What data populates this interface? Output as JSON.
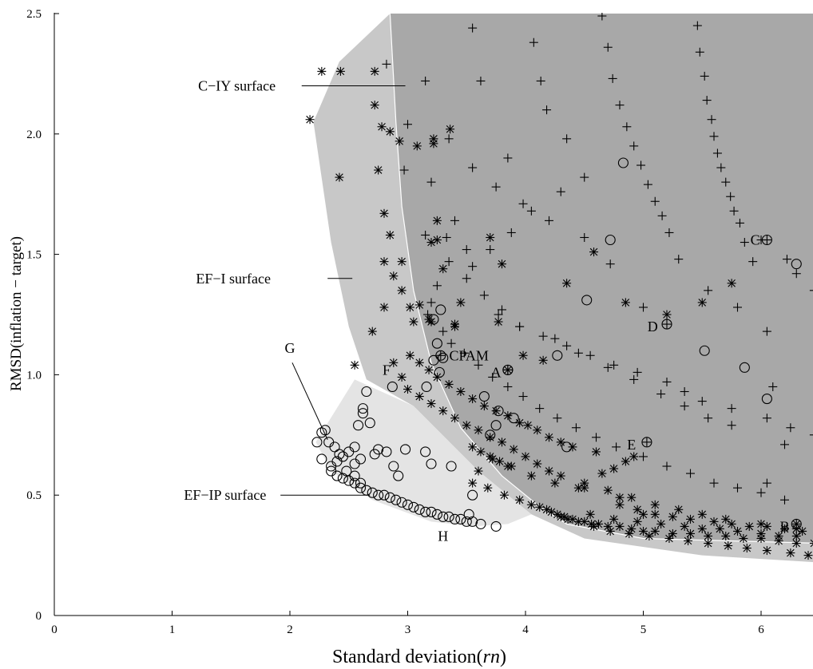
{
  "chart_data": {
    "type": "scatter",
    "title": "",
    "xlabel": "Standard deviation(rn)",
    "xlabel_parts": {
      "main": "Standard deviation(",
      "italic": "rn",
      "close": ")"
    },
    "ylabel": "RMSD(inflation − target)",
    "xlim": [
      0,
      6.45
    ],
    "ylim": [
      0,
      2.5
    ],
    "xticks": [
      "0",
      "1",
      "2",
      "3",
      "4",
      "5",
      "6"
    ],
    "yticks": [
      "0",
      "0.5",
      "1.0",
      "1.5",
      "2.0",
      "2.5"
    ],
    "grid": false,
    "legend": "none",
    "colors": {
      "cIY": "#a8a8a8",
      "efI": "#c8c8c8",
      "efIP": "#e4e4e4",
      "marker": "#000000",
      "boundary": "#ffffff"
    },
    "regions": [
      {
        "name": "C-IY surface",
        "fill": "cIY",
        "polygon": [
          [
            2.85,
            2.5
          ],
          [
            6.5,
            2.5
          ],
          [
            6.5,
            0.3
          ],
          [
            5.0,
            0.32
          ],
          [
            4.35,
            0.38
          ],
          [
            4.1,
            0.46
          ],
          [
            3.8,
            0.58
          ],
          [
            3.45,
            0.78
          ],
          [
            3.2,
            1.05
          ],
          [
            3.05,
            1.35
          ],
          [
            2.95,
            1.7
          ],
          [
            2.9,
            2.05
          ],
          [
            2.85,
            2.5
          ]
        ]
      },
      {
        "name": "EF-I surface",
        "fill": "efI",
        "polygon": [
          [
            2.85,
            2.5
          ],
          [
            2.9,
            2.05
          ],
          [
            2.95,
            1.7
          ],
          [
            3.05,
            1.35
          ],
          [
            3.2,
            1.05
          ],
          [
            3.45,
            0.78
          ],
          [
            3.8,
            0.58
          ],
          [
            4.1,
            0.46
          ],
          [
            4.35,
            0.38
          ],
          [
            5.0,
            0.32
          ],
          [
            6.5,
            0.3
          ],
          [
            6.5,
            0.22
          ],
          [
            5.5,
            0.25
          ],
          [
            4.5,
            0.32
          ],
          [
            4.05,
            0.42
          ],
          [
            3.6,
            0.6
          ],
          [
            3.05,
            0.87
          ],
          [
            2.65,
            0.98
          ],
          [
            2.5,
            1.2
          ],
          [
            2.35,
            1.55
          ],
          [
            2.2,
            2.05
          ],
          [
            2.42,
            2.3
          ],
          [
            2.85,
            2.5
          ]
        ]
      },
      {
        "name": "EF-IP surface",
        "fill": "efIP",
        "polygon": [
          [
            2.55,
            0.98
          ],
          [
            3.05,
            0.87
          ],
          [
            3.6,
            0.6
          ],
          [
            4.05,
            0.42
          ],
          [
            3.85,
            0.38
          ],
          [
            3.55,
            0.37
          ],
          [
            3.2,
            0.39
          ],
          [
            2.7,
            0.48
          ],
          [
            2.35,
            0.6
          ],
          [
            2.22,
            0.72
          ],
          [
            2.55,
            0.98
          ]
        ]
      }
    ],
    "annotations": [
      {
        "text": "C−IY surface",
        "x": 1.55,
        "y": 2.2,
        "line": [
          [
            2.1,
            2.2
          ],
          [
            2.98,
            2.2
          ]
        ]
      },
      {
        "text": "EF−I surface",
        "x": 1.52,
        "y": 1.4,
        "line": [
          [
            2.32,
            1.4
          ],
          [
            2.53,
            1.4
          ]
        ]
      },
      {
        "text": "EF−IP surface",
        "x": 1.45,
        "y": 0.5,
        "line": [
          [
            1.92,
            0.5
          ],
          [
            2.68,
            0.5
          ]
        ]
      },
      {
        "text": "G",
        "x": 2.0,
        "y": 1.11,
        "line": [
          [
            2.02,
            1.05
          ],
          [
            2.32,
            0.73
          ]
        ]
      },
      {
        "text": "H",
        "x": 3.3,
        "y": 0.33,
        "line": null
      },
      {
        "text": "F",
        "x": 2.82,
        "y": 1.02,
        "line": null
      },
      {
        "text": "CPAM",
        "x": 3.52,
        "y": 1.08,
        "line": null
      },
      {
        "text": "A",
        "x": 3.75,
        "y": 1.01,
        "line": null
      },
      {
        "text": "C",
        "x": 5.95,
        "y": 1.56,
        "line": null
      },
      {
        "text": "D",
        "x": 5.08,
        "y": 1.2,
        "line": null
      },
      {
        "text": "E",
        "x": 4.9,
        "y": 0.71,
        "line": null
      },
      {
        "text": "B",
        "x": 6.2,
        "y": 0.37,
        "line": null
      }
    ],
    "series": [
      {
        "name": "",
        "marker": "plus",
        "x": [
          2.82,
          3.15,
          3.0,
          3.55,
          3.62,
          2.97,
          3.2,
          3.85,
          4.07,
          4.13,
          4.18,
          4.35,
          3.5,
          3.4,
          3.33,
          3.15,
          4.65,
          4.7,
          4.74,
          4.8,
          4.86,
          4.92,
          4.98,
          5.04,
          5.1,
          5.16,
          5.22,
          5.46,
          5.48,
          5.52,
          5.54,
          5.58,
          5.6,
          5.63,
          5.66,
          5.7,
          5.74,
          5.77,
          5.82,
          5.86,
          5.93,
          6.0,
          6.22,
          6.3,
          6.45,
          6.05,
          5.8,
          5.55,
          5.3,
          5.0,
          4.72,
          4.5,
          4.2,
          3.98,
          3.75,
          3.55,
          3.35,
          3.2,
          3.17,
          3.3,
          3.37,
          3.48,
          3.6,
          3.72,
          3.85,
          3.98,
          4.12,
          4.27,
          4.43,
          4.6,
          4.77,
          5.0,
          5.2,
          5.4,
          5.6,
          5.8,
          6.0,
          6.2,
          3.77,
          3.95,
          4.15,
          4.35,
          4.55,
          4.75,
          4.95,
          5.2,
          5.35,
          5.5,
          5.75,
          6.05,
          6.25,
          6.45,
          6.2,
          6.1,
          6.05,
          5.75,
          5.55,
          5.35,
          5.15,
          4.92,
          4.7,
          4.45,
          4.25,
          3.95,
          3.8,
          3.65,
          3.5,
          3.35,
          3.25,
          3.55,
          3.7,
          3.88,
          4.05,
          4.3,
          4.5
        ],
        "y": [
          2.29,
          2.22,
          2.04,
          2.44,
          2.22,
          1.85,
          1.8,
          1.9,
          2.38,
          2.22,
          2.1,
          1.98,
          1.52,
          1.64,
          1.57,
          1.58,
          2.49,
          2.36,
          2.23,
          2.12,
          2.03,
          1.95,
          1.87,
          1.79,
          1.72,
          1.66,
          1.59,
          2.45,
          2.34,
          2.24,
          2.14,
          2.06,
          1.99,
          1.92,
          1.86,
          1.8,
          1.74,
          1.68,
          1.63,
          1.55,
          1.47,
          1.56,
          1.48,
          1.42,
          1.35,
          1.18,
          1.28,
          1.35,
          1.48,
          1.28,
          1.46,
          1.57,
          1.64,
          1.71,
          1.78,
          1.86,
          1.98,
          1.3,
          1.25,
          1.18,
          1.13,
          1.09,
          1.04,
          0.99,
          0.95,
          0.91,
          0.86,
          0.82,
          0.78,
          0.74,
          0.7,
          0.66,
          0.62,
          0.59,
          0.55,
          0.53,
          0.51,
          0.48,
          1.25,
          1.2,
          1.16,
          1.12,
          1.08,
          1.04,
          1.01,
          0.97,
          0.93,
          0.89,
          0.86,
          0.82,
          0.78,
          0.75,
          0.71,
          0.95,
          0.55,
          0.79,
          0.82,
          0.87,
          0.92,
          0.98,
          1.03,
          1.09,
          1.15,
          1.2,
          1.27,
          1.33,
          1.4,
          1.47,
          1.37,
          1.45,
          1.52,
          1.59,
          1.68,
          1.76,
          1.82
        ]
      },
      {
        "name": "",
        "marker": "asterisk",
        "x": [
          2.27,
          2.43,
          2.72,
          2.17,
          2.42,
          2.72,
          2.78,
          2.85,
          2.93,
          3.08,
          3.22,
          3.36,
          3.22,
          2.75,
          2.8,
          2.85,
          2.95,
          3.25,
          3.3,
          3.7,
          3.8,
          3.45,
          3.25,
          3.2,
          2.8,
          2.88,
          2.95,
          3.02,
          3.1,
          3.18,
          3.05,
          3.4,
          3.2,
          3.4,
          3.77,
          3.98,
          4.15,
          4.35,
          4.58,
          4.85,
          5.2,
          5.5,
          5.75,
          2.55,
          2.7,
          2.8,
          2.88,
          2.95,
          3.0,
          3.1,
          3.2,
          3.3,
          3.4,
          3.5,
          3.6,
          3.7,
          3.8,
          3.9,
          4.0,
          4.1,
          4.2,
          4.3,
          4.5,
          4.7,
          4.9,
          5.1,
          5.3,
          5.5,
          5.7,
          6.0,
          6.3,
          4.5,
          4.8,
          5.0,
          4.65,
          4.75,
          4.85,
          4.92,
          4.6,
          4.4,
          4.3,
          4.2,
          4.1,
          4.02,
          3.95,
          3.85,
          3.75,
          3.65,
          3.55,
          3.45,
          3.35,
          3.25,
          3.18,
          3.1,
          3.02,
          3.55,
          3.68,
          3.82,
          3.95,
          4.05,
          4.12,
          4.18,
          4.22,
          4.27,
          4.3,
          4.33,
          4.36,
          4.4,
          4.45,
          4.5,
          4.56,
          4.62,
          4.7,
          4.8,
          4.9,
          5.0,
          5.1,
          5.25,
          5.4,
          5.55,
          5.7,
          5.85,
          6.0,
          6.15,
          6.3,
          6.45,
          4.8,
          4.95,
          5.1,
          5.25,
          5.4,
          5.6,
          5.75,
          5.9,
          6.05,
          6.2,
          6.35,
          4.55,
          4.75,
          4.95,
          5.15,
          5.35,
          5.5,
          5.65,
          5.8,
          6.0,
          6.15,
          6.3,
          4.58,
          4.72,
          4.88,
          5.05,
          5.22,
          5.38,
          5.55,
          5.72,
          5.88,
          6.05,
          6.25,
          6.4,
          3.88,
          4.05,
          4.25,
          4.45,
          3.6,
          3.72,
          3.55,
          3.62,
          3.7,
          3.78,
          3.85
        ],
        "y": [
          2.26,
          2.26,
          2.26,
          2.06,
          1.82,
          2.12,
          2.03,
          2.01,
          1.97,
          1.95,
          1.98,
          2.02,
          1.96,
          1.85,
          1.67,
          1.58,
          1.47,
          1.64,
          1.44,
          1.57,
          1.46,
          1.3,
          1.56,
          1.55,
          1.47,
          1.41,
          1.35,
          1.28,
          1.29,
          1.23,
          1.22,
          1.21,
          1.22,
          1.2,
          1.22,
          1.08,
          1.06,
          1.38,
          1.51,
          1.3,
          1.25,
          1.3,
          1.38,
          1.04,
          1.18,
          1.28,
          1.05,
          0.99,
          0.94,
          0.91,
          0.88,
          0.85,
          0.82,
          0.79,
          0.77,
          0.74,
          0.72,
          0.69,
          0.66,
          0.63,
          0.6,
          0.58,
          0.55,
          0.52,
          0.49,
          0.46,
          0.44,
          0.42,
          0.4,
          0.38,
          0.36,
          0.53,
          0.49,
          0.42,
          0.59,
          0.61,
          0.64,
          0.66,
          0.68,
          0.7,
          0.72,
          0.74,
          0.77,
          0.79,
          0.8,
          0.83,
          0.85,
          0.87,
          0.9,
          0.93,
          0.96,
          0.99,
          1.02,
          1.05,
          1.08,
          0.55,
          0.53,
          0.5,
          0.48,
          0.46,
          0.45,
          0.44,
          0.43,
          0.42,
          0.41,
          0.41,
          0.4,
          0.4,
          0.39,
          0.39,
          0.38,
          0.38,
          0.37,
          0.37,
          0.36,
          0.35,
          0.35,
          0.34,
          0.34,
          0.33,
          0.33,
          0.32,
          0.32,
          0.31,
          0.3,
          0.3,
          0.46,
          0.44,
          0.42,
          0.41,
          0.4,
          0.39,
          0.38,
          0.37,
          0.37,
          0.36,
          0.35,
          0.42,
          0.4,
          0.39,
          0.38,
          0.37,
          0.36,
          0.36,
          0.35,
          0.34,
          0.33,
          0.33,
          0.37,
          0.35,
          0.34,
          0.33,
          0.32,
          0.31,
          0.3,
          0.29,
          0.28,
          0.27,
          0.26,
          0.25,
          0.62,
          0.58,
          0.55,
          0.53,
          0.6,
          0.65,
          0.7,
          0.68,
          0.66,
          0.64,
          0.62
        ]
      },
      {
        "name": "",
        "marker": "circle",
        "x": [
          2.27,
          2.23,
          2.3,
          2.33,
          2.27,
          2.35,
          2.4,
          2.45,
          2.5,
          2.55,
          2.6,
          2.65,
          2.7,
          2.75,
          2.8,
          2.85,
          2.9,
          2.95,
          3.0,
          3.05,
          3.1,
          3.15,
          3.2,
          3.25,
          3.3,
          3.35,
          3.4,
          3.45,
          3.5,
          3.55,
          2.65,
          2.62,
          2.68,
          2.75,
          2.82,
          2.88,
          2.92,
          2.98,
          3.15,
          3.2,
          3.37,
          2.55,
          2.5,
          2.45,
          2.4,
          2.35,
          2.58,
          2.62,
          2.48,
          2.55,
          2.6,
          2.72,
          3.28,
          3.22,
          3.25,
          3.3,
          2.87,
          3.16,
          3.55,
          3.75,
          4.83,
          4.72,
          4.52,
          4.27,
          5.52,
          5.86,
          6.3,
          6.05,
          3.77,
          3.9,
          3.65,
          3.7,
          3.75,
          4.35,
          3.27,
          3.22,
          3.52,
          3.62,
          2.55,
          2.6,
          2.42,
          2.38
        ],
        "y": [
          0.76,
          0.72,
          0.77,
          0.72,
          0.65,
          0.6,
          0.58,
          0.57,
          0.56,
          0.55,
          0.53,
          0.52,
          0.51,
          0.5,
          0.5,
          0.49,
          0.48,
          0.47,
          0.46,
          0.45,
          0.44,
          0.43,
          0.43,
          0.42,
          0.41,
          0.41,
          0.4,
          0.4,
          0.39,
          0.39,
          0.93,
          0.84,
          0.8,
          0.69,
          0.68,
          0.62,
          0.58,
          0.69,
          0.68,
          0.63,
          0.62,
          0.7,
          0.68,
          0.66,
          0.64,
          0.62,
          0.79,
          0.86,
          0.6,
          0.63,
          0.65,
          0.67,
          1.27,
          1.23,
          1.13,
          1.07,
          0.95,
          0.95,
          0.5,
          0.37,
          1.88,
          1.56,
          1.31,
          1.08,
          1.1,
          1.03,
          1.46,
          0.9,
          0.85,
          0.82,
          0.91,
          0.75,
          0.79,
          0.7,
          1.01,
          1.06,
          0.42,
          0.38,
          0.58,
          0.55,
          0.67,
          0.7
        ]
      },
      {
        "name": "",
        "marker": "circle-plus",
        "x": [
          6.05,
          5.2,
          3.85,
          5.03,
          3.28
        ],
        "y": [
          1.56,
          1.21,
          1.02,
          0.72,
          1.08
        ]
      },
      {
        "name": "",
        "marker": "circle-asterisk",
        "x": [
          6.3,
          3.85
        ],
        "y": [
          0.38,
          1.02
        ]
      }
    ]
  }
}
